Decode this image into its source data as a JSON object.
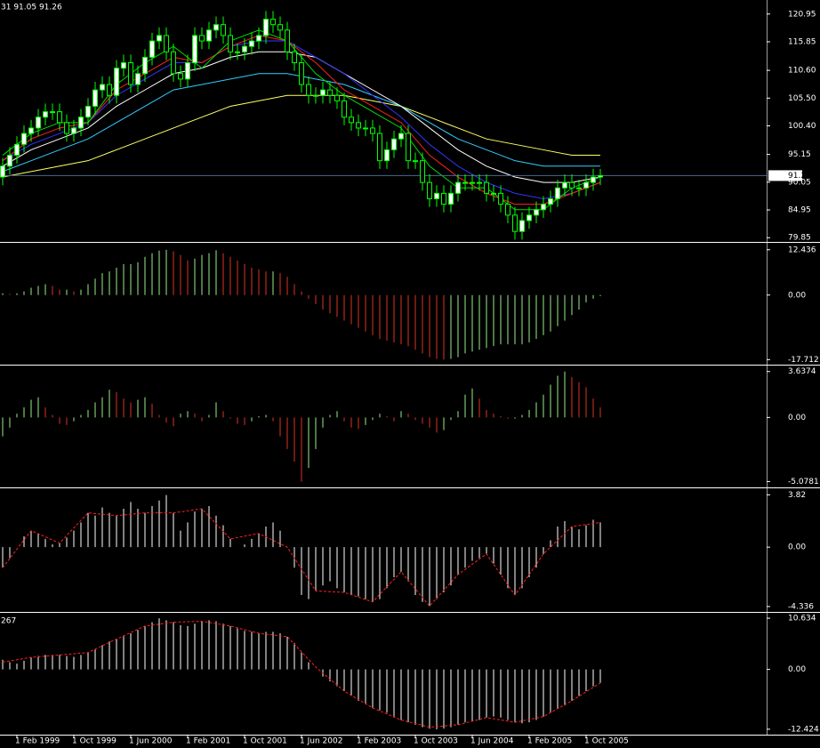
{
  "chart_data": [
    {
      "type": "candlestick",
      "title": "31 91.05 91.26",
      "open": [
        91,
        93,
        95,
        97,
        99,
        100,
        102,
        103,
        103,
        101,
        99,
        100,
        102,
        104,
        107,
        108,
        106,
        111,
        112,
        108,
        110,
        113,
        116,
        117,
        114,
        110,
        109,
        112,
        117,
        116,
        118,
        119,
        117,
        114,
        114,
        115,
        116,
        117,
        120,
        119,
        118,
        114,
        112,
        108,
        106,
        106,
        107,
        106,
        105,
        102,
        101,
        100,
        100,
        99,
        94,
        96,
        98,
        99,
        94,
        94,
        90,
        87,
        88,
        86,
        88,
        90,
        90,
        90,
        90,
        88,
        88,
        86,
        84,
        81,
        83,
        84,
        85,
        86,
        87,
        89,
        90,
        89,
        89,
        90,
        91
      ],
      "high": [
        94.5,
        96.5,
        98.5,
        100.5,
        101.5,
        103.5,
        104.5,
        104.5,
        104.5,
        102.5,
        101.5,
        103.5,
        105.5,
        108.5,
        109.5,
        109.5,
        112.5,
        113.5,
        113.5,
        111.5,
        114.5,
        117.5,
        118.5,
        118.5,
        115.5,
        111.5,
        113.5,
        118.5,
        118.5,
        119.5,
        120.5,
        120.5,
        118.5,
        115.5,
        116.5,
        117.5,
        118.5,
        121.5,
        121.5,
        120.5,
        119.5,
        115.5,
        113.5,
        109.5,
        107.5,
        108.5,
        108.5,
        107.5,
        106.5,
        103.5,
        102.5,
        101.5,
        101.5,
        100.5,
        97.5,
        99.5,
        100.5,
        100.5,
        95.5,
        95.5,
        91.5,
        89.5,
        89.5,
        89.5,
        91.5,
        91.5,
        91.5,
        91.5,
        91.5,
        89.5,
        89.5,
        87.5,
        85.5,
        84.5,
        85.5,
        86.5,
        87.5,
        88.5,
        90.5,
        91.5,
        91.5,
        90.5,
        91.5,
        92.5,
        92.5
      ],
      "low": [
        89.5,
        91.5,
        93.5,
        95.5,
        97.5,
        98.5,
        100.5,
        101.5,
        99.5,
        97.5,
        97.5,
        98.5,
        100.5,
        102.5,
        105.5,
        104.5,
        104.5,
        109.5,
        106.5,
        106.5,
        108.5,
        111.5,
        114.5,
        112.5,
        108.5,
        107.5,
        107.5,
        110.5,
        114.5,
        114.5,
        116.5,
        115.5,
        112.5,
        112.5,
        112.5,
        113.5,
        114.5,
        115.5,
        117.5,
        116.5,
        112.5,
        110.5,
        106.5,
        104.5,
        104.5,
        104.5,
        104.5,
        103.5,
        100.5,
        99.5,
        98.5,
        98.5,
        97.5,
        92.5,
        92.5,
        94.5,
        96.5,
        92.5,
        92.5,
        88.5,
        85.5,
        85.5,
        84.5,
        84.5,
        86.5,
        88.5,
        88.5,
        88.5,
        86.5,
        86.5,
        84.5,
        82.5,
        79.5,
        79.5,
        81.5,
        82.5,
        83.5,
        84.5,
        85.5,
        87.5,
        87.5,
        87.5,
        87.5,
        88.5,
        89.5
      ],
      "close": [
        93,
        95,
        97,
        99,
        100,
        102,
        103,
        103,
        101,
        99,
        100,
        102,
        104,
        107,
        108,
        106,
        111,
        112,
        108,
        110,
        113,
        116,
        117,
        114,
        110,
        109,
        112,
        117,
        116,
        118,
        119,
        117,
        114,
        114,
        115,
        116,
        117,
        120,
        119,
        118,
        114,
        112,
        108,
        106,
        106,
        107,
        106,
        105,
        102,
        101,
        100,
        100,
        99,
        94,
        96,
        98,
        99,
        94,
        94,
        90,
        87,
        88,
        86,
        88,
        90,
        90,
        90,
        90,
        88,
        88,
        86,
        84,
        81,
        83,
        84,
        85,
        86,
        87,
        89,
        90,
        89,
        89,
        90,
        91,
        91.26
      ],
      "up_color": "#ffffff",
      "down_color": "#000000",
      "wick_color": "#00ff00",
      "ma_x": [
        0,
        4,
        8,
        12,
        16,
        20,
        24,
        28,
        32,
        36,
        40,
        44,
        48,
        52,
        56,
        60,
        64,
        68,
        72,
        76,
        80,
        84
      ],
      "series": [
        {
          "color": "#ffff66",
          "values": [
            91,
            92,
            93,
            94,
            96,
            98,
            100,
            102,
            104,
            105,
            106,
            106,
            106,
            105,
            104,
            102,
            100,
            98,
            97,
            96,
            95,
            95
          ]
        },
        {
          "color": "#33ccff",
          "values": [
            92,
            94,
            96,
            98,
            101,
            104,
            107,
            108,
            109,
            110,
            110,
            109,
            108,
            106,
            104,
            101,
            98,
            96,
            94,
            93,
            93,
            93
          ]
        },
        {
          "color": "#ffffff",
          "values": [
            93,
            96,
            98,
            100,
            104,
            107,
            110,
            111,
            113,
            114,
            114,
            113,
            110,
            107,
            104,
            100,
            96,
            93,
            91,
            90,
            90,
            91
          ]
        },
        {
          "color": "#3333ff",
          "values": [
            94,
            97,
            99,
            101,
            106,
            109,
            112,
            112,
            115,
            116,
            116,
            113,
            110,
            106,
            102,
            97,
            93,
            90,
            88,
            87,
            88,
            90
          ]
        },
        {
          "color": "#ff2020",
          "values": [
            94,
            98,
            100,
            101,
            107,
            110,
            113,
            112,
            115,
            117,
            116,
            112,
            107,
            104,
            101,
            95,
            91,
            88,
            86,
            86,
            88,
            90
          ]
        },
        {
          "color": "#00dd00",
          "values": [
            95,
            99,
            101,
            101,
            108,
            112,
            115,
            111,
            116,
            118,
            116,
            110,
            106,
            103,
            100,
            93,
            89,
            89,
            85,
            85,
            89,
            91
          ]
        }
      ],
      "last_price": 91.26,
      "last_price_color": "#4a6a90",
      "ylim": [
        79.4,
        123.2
      ],
      "yticks": [
        120.95,
        115.85,
        {
          "value": 110.6,
          "label": "110.60"
        },
        {
          "value": 105.5,
          "label": "105.50"
        },
        {
          "value": 100.4,
          "label": "100.40"
        },
        95.15,
        90.05,
        84.95,
        79.85
      ]
    },
    {
      "type": "bar",
      "up_color": "#99ee88",
      "down_color": "#dd3322",
      "values": [
        0.5,
        0.3,
        0.5,
        1,
        2,
        2.5,
        3,
        2.5,
        1.5,
        1.5,
        1,
        1.5,
        3,
        4.5,
        6,
        6.5,
        7.5,
        8.5,
        8.5,
        9,
        10.5,
        11.5,
        12.2,
        12.4,
        12,
        11,
        9.5,
        10,
        11,
        11.5,
        12.3,
        11.5,
        10.5,
        9.5,
        8.5,
        7.5,
        7,
        6.5,
        6.5,
        6,
        5,
        3,
        1,
        -1,
        -2.5,
        -4,
        -5,
        -6,
        -7,
        -8,
        -9,
        -10,
        -11,
        -12,
        -12.5,
        -13,
        -13.5,
        -14,
        -15,
        -16,
        -17,
        -17.5,
        -17.7,
        -17.5,
        -17,
        -16,
        -15.5,
        -15,
        -14.5,
        -14,
        -13.5,
        -13.5,
        -13.5,
        -13.5,
        -13,
        -12,
        -11,
        -10,
        -8.5,
        -7,
        -5.5,
        -4,
        -2,
        -1,
        -0.3
      ],
      "ylim": [
        -18.6,
        13.6
      ],
      "yticks": [
        12.436,
        {
          "value": 0,
          "label": "0.00"
        },
        -17.712
      ]
    },
    {
      "type": "bar",
      "up_color": "#99ee88",
      "down_color": "#dd3322",
      "values": [
        -1.5,
        -0.8,
        0.3,
        0.8,
        1.4,
        1.6,
        0.8,
        0.2,
        -0.5,
        -0.6,
        -0.3,
        0.2,
        0.6,
        1.2,
        1.6,
        2.2,
        2.0,
        1.5,
        1.2,
        1.4,
        1.6,
        1.1,
        0.2,
        -0.4,
        -0.7,
        0.3,
        0.5,
        0.3,
        -0.3,
        0.2,
        1.2,
        0.5,
        -0.1,
        -0.5,
        -0.6,
        -0.3,
        0.1,
        0.2,
        -0.3,
        -1.5,
        -2.5,
        -3.5,
        -5.08,
        -4,
        -2.5,
        -0.8,
        0.2,
        0.5,
        -0.3,
        -0.8,
        -0.9,
        -0.6,
        -0.2,
        0.3,
        0.1,
        -0.3,
        0.5,
        0.3,
        -0.2,
        -0.5,
        -0.8,
        -1.2,
        -1.0,
        -0.2,
        0.5,
        1.8,
        2.3,
        1.5,
        0.6,
        0.3,
        0.1,
        -0.1,
        -0.1,
        0.2,
        0.6,
        1.2,
        1.8,
        2.6,
        3.3,
        3.64,
        3.2,
        2.8,
        2.4,
        1.5,
        0.8
      ],
      "ylim": [
        -5.4,
        3.9
      ],
      "yticks": [
        3.6374,
        {
          "value": 0,
          "label": "0.00"
        },
        -5.0781
      ]
    },
    {
      "type": "bar",
      "color": "#ffffff",
      "values": [
        -1.5,
        -0.8,
        0,
        0.8,
        1.2,
        1.0,
        0.6,
        0.2,
        0.3,
        0.7,
        1.2,
        1.8,
        2.5,
        2.3,
        2.9,
        2.5,
        2.3,
        2.8,
        3.3,
        2.8,
        2.5,
        3.0,
        3.4,
        3.8,
        2.5,
        1.2,
        1.8,
        2.6,
        2.8,
        3.0,
        2.3,
        1.6,
        0.6,
        0.0,
        0.2,
        0.6,
        1.0,
        1.5,
        1.8,
        1.2,
        0.0,
        -1.5,
        -3.5,
        -3.8,
        -3.2,
        -2.8,
        -2.5,
        -3.0,
        -3.3,
        -3.5,
        -3.6,
        -3.8,
        -4.0,
        -3.8,
        -3.0,
        -2.2,
        -1.8,
        -2.5,
        -3.5,
        -4.0,
        -4.3,
        -3.8,
        -3.3,
        -2.8,
        -2.0,
        -1.5,
        -1.0,
        -0.8,
        -0.5,
        -1.2,
        -2.0,
        -3.0,
        -3.5,
        -3.0,
        -2.2,
        -1.5,
        -0.5,
        0.5,
        1.5,
        1.9,
        1.5,
        1.3,
        1.6,
        2.0,
        1.8
      ],
      "line_x": [
        0,
        4,
        8,
        12,
        16,
        20,
        24,
        28,
        32,
        36,
        40,
        44,
        48,
        52,
        56,
        60,
        64,
        68,
        72,
        76,
        80,
        84
      ],
      "line": {
        "color": "#ff2020",
        "values": [
          -1.5,
          1.2,
          0.3,
          2.5,
          2.3,
          2.5,
          2.5,
          2.8,
          0.6,
          1.0,
          0.0,
          -3.2,
          -3.3,
          -4.0,
          -1.8,
          -4.3,
          -2.0,
          -0.5,
          -3.5,
          -0.5,
          1.5,
          1.8
        ]
      },
      "ylim": [
        -4.6,
        4.1
      ],
      "yticks": [
        3.82,
        {
          "value": 0,
          "label": "0.00"
        },
        -4.336
      ]
    },
    {
      "type": "bar",
      "title": "267",
      "color": "#ffffff",
      "values": [
        2.0,
        1.5,
        1.2,
        1.8,
        2.5,
        2.8,
        3.0,
        3.0,
        3.0,
        2.8,
        2.6,
        3.0,
        3.5,
        4.2,
        5.0,
        5.8,
        6.3,
        7.0,
        7.5,
        8.2,
        9.0,
        9.8,
        10.634,
        10.2,
        9.8,
        9.2,
        9.0,
        9.5,
        10.0,
        10.2,
        10.0,
        9.5,
        9.0,
        8.5,
        8.0,
        7.8,
        7.5,
        7.8,
        7.8,
        7.5,
        6.8,
        5.5,
        3.5,
        1.5,
        0.0,
        -1.5,
        -2.5,
        -3.5,
        -4.5,
        -5.5,
        -6.5,
        -7.2,
        -8.0,
        -8.5,
        -9.0,
        -9.8,
        -10.5,
        -11.0,
        -11.5,
        -12.0,
        -12.3,
        -12.424,
        -12.3,
        -12.0,
        -11.5,
        -11.0,
        -10.8,
        -10.5,
        -10.0,
        -9.8,
        -10.0,
        -10.5,
        -11.0,
        -11.2,
        -11.0,
        -10.5,
        -9.8,
        -9.0,
        -8.2,
        -7.5,
        -6.5,
        -5.5,
        -4.5,
        -3.5,
        -2.8
      ],
      "line_x": [
        0,
        4,
        8,
        12,
        16,
        20,
        24,
        28,
        32,
        36,
        40,
        44,
        48,
        52,
        56,
        60,
        64,
        68,
        72,
        76,
        80,
        84
      ],
      "line": {
        "color": "#ff2020",
        "values": [
          1.5,
          2.5,
          3.0,
          3.5,
          6.3,
          9.0,
          9.8,
          10.0,
          9.0,
          7.5,
          6.8,
          0.5,
          -4.5,
          -8.0,
          -10.5,
          -12.0,
          -11.5,
          -10.0,
          -11.0,
          -9.8,
          -6.5,
          -2.8
        ]
      },
      "ylim": [
        -13.0,
        11.2
      ],
      "yticks": [
        10.634,
        {
          "value": 0,
          "label": "0.00"
        },
        -12.424
      ],
      "xticks": [
        {
          "value": 2,
          "label": "1 Feb 1999"
        },
        {
          "value": 10,
          "label": "1 Oct 1999"
        },
        {
          "value": 18,
          "label": "1 Jun 2000"
        },
        {
          "value": 26,
          "label": "1 Feb 2001"
        },
        {
          "value": 34,
          "label": "1 Oct 2001"
        },
        {
          "value": 42,
          "label": "1 Jun 2002"
        },
        {
          "value": 50,
          "label": "1 Feb 2003"
        },
        {
          "value": 58,
          "label": "1 Oct 2003"
        },
        {
          "value": 66,
          "label": "1 Jun 2004"
        },
        {
          "value": 74,
          "label": "1 Feb 2005"
        },
        {
          "value": 82,
          "label": "1 Oct 2005"
        }
      ]
    }
  ]
}
